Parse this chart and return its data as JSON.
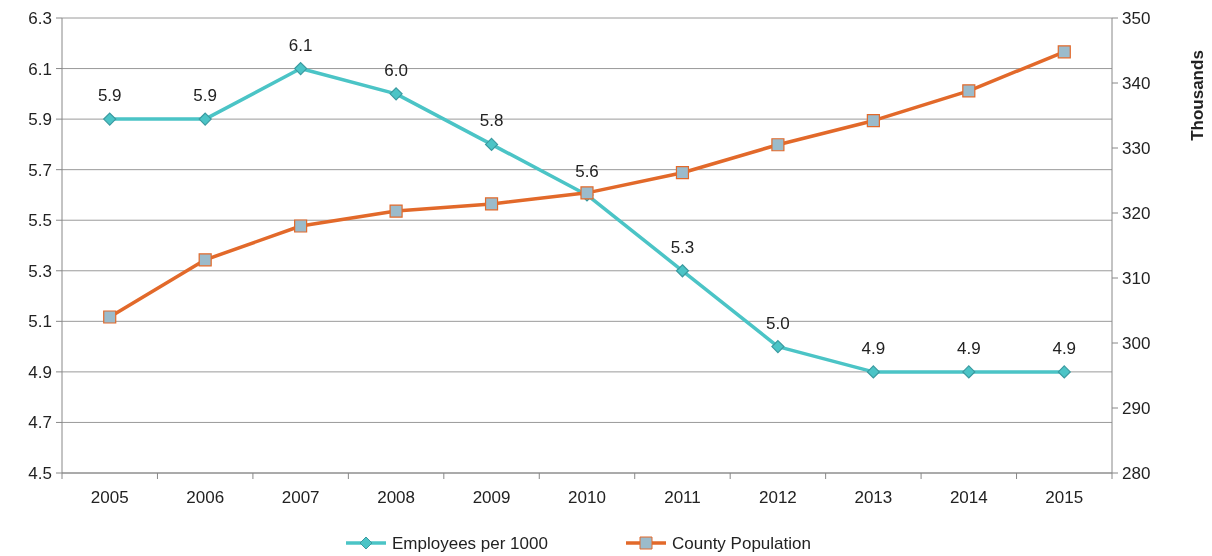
{
  "chart_data": {
    "type": "line",
    "categories": [
      "2005",
      "2006",
      "2007",
      "2008",
      "2009",
      "2010",
      "2011",
      "2012",
      "2013",
      "2014",
      "2015"
    ],
    "series": [
      {
        "name": "Employees per 1000",
        "color": "#4bc4c6",
        "marker": "diamond",
        "values": [
          5.9,
          5.9,
          6.1,
          6.0,
          5.8,
          5.6,
          5.3,
          5.0,
          4.9,
          4.9,
          4.9
        ],
        "value_labels": [
          "5.9",
          "5.9",
          "6.1",
          "6.0",
          "5.8",
          "5.6",
          "5.3",
          "5.0",
          "4.9",
          "4.9",
          "4.9"
        ]
      },
      {
        "name": "County Population",
        "color": "#e2692a",
        "marker": "square",
        "axis": "y2",
        "values": [
          304.0,
          312.8,
          318.0,
          320.3,
          321.4,
          323.1,
          326.2,
          330.5,
          334.2,
          338.8,
          344.8
        ]
      }
    ],
    "ylim": [
      4.5,
      6.3
    ],
    "yticks": [
      4.5,
      4.7,
      4.9,
      5.1,
      5.3,
      5.5,
      5.7,
      5.9,
      6.1,
      6.3
    ],
    "y2lim": [
      280,
      350
    ],
    "y2ticks": [
      280,
      290,
      300,
      310,
      320,
      330,
      340,
      350
    ],
    "y2label": "Thousands",
    "grid": "y",
    "legend": "bottom"
  }
}
